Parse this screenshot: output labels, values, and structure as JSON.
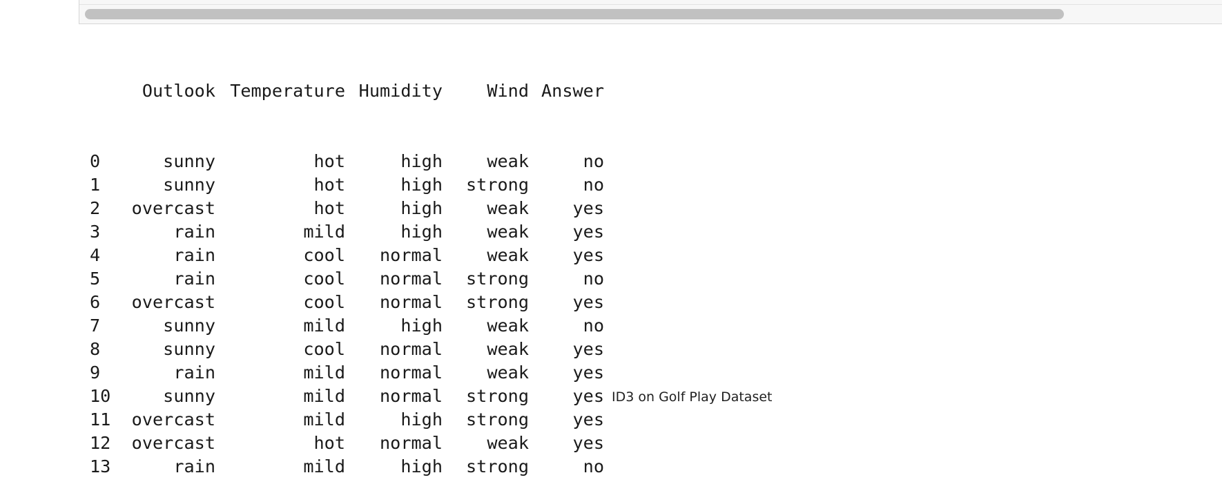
{
  "output": {
    "header": {
      "index": "",
      "outlook": "Outlook",
      "temperature": "Temperature",
      "humidity": "Humidity",
      "wind": "Wind",
      "answer": "Answer"
    },
    "rows": [
      {
        "index": "0",
        "outlook": "sunny",
        "temperature": "hot",
        "humidity": "high",
        "wind": "weak",
        "answer": "no"
      },
      {
        "index": "1",
        "outlook": "sunny",
        "temperature": "hot",
        "humidity": "high",
        "wind": "strong",
        "answer": "no"
      },
      {
        "index": "2",
        "outlook": "overcast",
        "temperature": "hot",
        "humidity": "high",
        "wind": "weak",
        "answer": "yes"
      },
      {
        "index": "3",
        "outlook": "rain",
        "temperature": "mild",
        "humidity": "high",
        "wind": "weak",
        "answer": "yes"
      },
      {
        "index": "4",
        "outlook": "rain",
        "temperature": "cool",
        "humidity": "normal",
        "wind": "weak",
        "answer": "yes"
      },
      {
        "index": "5",
        "outlook": "rain",
        "temperature": "cool",
        "humidity": "normal",
        "wind": "strong",
        "answer": "no"
      },
      {
        "index": "6",
        "outlook": "overcast",
        "temperature": "cool",
        "humidity": "normal",
        "wind": "strong",
        "answer": "yes"
      },
      {
        "index": "7",
        "outlook": "sunny",
        "temperature": "mild",
        "humidity": "high",
        "wind": "weak",
        "answer": "no"
      },
      {
        "index": "8",
        "outlook": "sunny",
        "temperature": "cool",
        "humidity": "normal",
        "wind": "weak",
        "answer": "yes"
      },
      {
        "index": "9",
        "outlook": "rain",
        "temperature": "mild",
        "humidity": "normal",
        "wind": "weak",
        "answer": "yes"
      },
      {
        "index": "10",
        "outlook": "sunny",
        "temperature": "mild",
        "humidity": "normal",
        "wind": "strong",
        "answer": "yes"
      },
      {
        "index": "11",
        "outlook": "overcast",
        "temperature": "mild",
        "humidity": "high",
        "wind": "strong",
        "answer": "yes"
      },
      {
        "index": "12",
        "outlook": "overcast",
        "temperature": "hot",
        "humidity": "normal",
        "wind": "weak",
        "answer": "yes"
      },
      {
        "index": "13",
        "outlook": "rain",
        "temperature": "mild",
        "humidity": "high",
        "wind": "strong",
        "answer": "no"
      }
    ]
  },
  "caption": "ID3 on Golf Play Dataset"
}
